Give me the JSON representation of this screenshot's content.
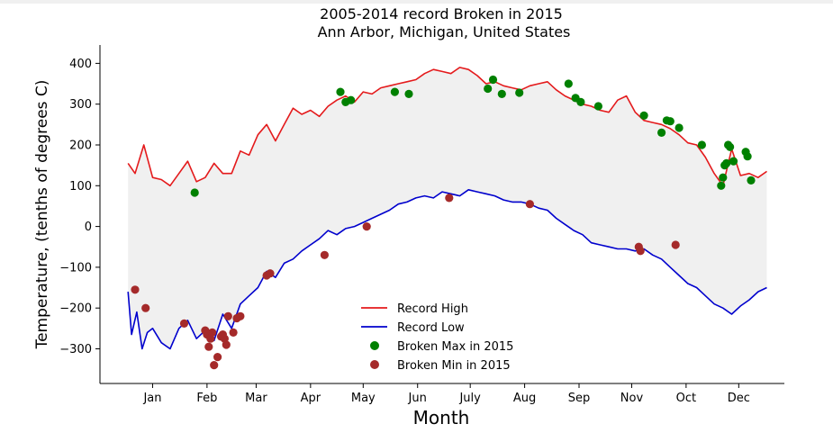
{
  "chart_data": {
    "type": "line",
    "title": "2005-2014 record Broken in 2015",
    "subtitle": "Ann Arbor, Michigan, United States",
    "xlabel": "Month",
    "ylabel": "Temperature, (tenths of degrees C)",
    "xlim": [
      -15,
      375
    ],
    "ylim": [
      -385,
      445
    ],
    "x_ticks": [
      {
        "label": "Jan",
        "day": 15
      },
      {
        "label": "Feb",
        "day": 46
      },
      {
        "label": "Mar",
        "day": 74
      },
      {
        "label": "Apr",
        "day": 105
      },
      {
        "label": "May",
        "day": 135
      },
      {
        "label": "Jun",
        "day": 166
      },
      {
        "label": "July",
        "day": 196
      },
      {
        "label": "Aug",
        "day": 227
      },
      {
        "label": "Sep",
        "day": 258
      },
      {
        "label": "Nov",
        "day": 288
      },
      {
        "label": "Oct",
        "day": 319
      },
      {
        "label": "Dec",
        "day": 349
      }
    ],
    "y_ticks": [
      -300,
      -200,
      -100,
      0,
      100,
      200,
      300,
      400
    ],
    "fill_between": {
      "color": "#f0f0f0"
    },
    "series": [
      {
        "name": "Record High",
        "color": "#e41a1c",
        "x": [
          1,
          5,
          10,
          15,
          20,
          25,
          30,
          35,
          40,
          45,
          50,
          55,
          60,
          65,
          70,
          75,
          80,
          85,
          90,
          95,
          100,
          105,
          110,
          115,
          120,
          125,
          130,
          135,
          140,
          145,
          150,
          155,
          160,
          165,
          170,
          175,
          180,
          185,
          190,
          195,
          200,
          205,
          210,
          215,
          220,
          225,
          230,
          235,
          240,
          245,
          250,
          255,
          260,
          265,
          270,
          275,
          280,
          285,
          290,
          295,
          300,
          305,
          310,
          315,
          320,
          325,
          330,
          335,
          340,
          345,
          350,
          355,
          360,
          365
        ],
        "y": [
          155,
          130,
          200,
          120,
          115,
          100,
          130,
          160,
          110,
          120,
          155,
          130,
          130,
          185,
          175,
          225,
          250,
          210,
          250,
          290,
          275,
          285,
          270,
          295,
          310,
          320,
          305,
          330,
          325,
          340,
          345,
          350,
          355,
          360,
          375,
          385,
          380,
          375,
          390,
          385,
          370,
          350,
          355,
          345,
          340,
          335,
          345,
          350,
          355,
          335,
          320,
          310,
          300,
          295,
          285,
          280,
          310,
          320,
          280,
          260,
          255,
          250,
          240,
          225,
          205,
          200,
          170,
          130,
          100,
          190,
          125,
          130,
          120,
          135
        ]
      },
      {
        "name": "Record Low",
        "color": "#0000cd",
        "x": [
          1,
          3,
          6,
          9,
          12,
          15,
          20,
          25,
          30,
          35,
          40,
          45,
          50,
          55,
          60,
          65,
          70,
          75,
          80,
          85,
          90,
          95,
          100,
          105,
          110,
          115,
          120,
          125,
          130,
          135,
          140,
          145,
          150,
          155,
          160,
          165,
          170,
          175,
          180,
          185,
          190,
          195,
          200,
          205,
          210,
          215,
          220,
          225,
          230,
          235,
          240,
          245,
          250,
          255,
          260,
          265,
          270,
          275,
          280,
          285,
          290,
          295,
          300,
          305,
          310,
          315,
          320,
          325,
          330,
          335,
          340,
          345,
          350,
          355,
          360,
          365
        ],
        "y": [
          -160,
          -265,
          -210,
          -300,
          -260,
          -250,
          -285,
          -300,
          -250,
          -230,
          -275,
          -255,
          -280,
          -215,
          -250,
          -190,
          -170,
          -150,
          -110,
          -125,
          -90,
          -80,
          -60,
          -45,
          -30,
          -10,
          -20,
          -5,
          0,
          10,
          20,
          30,
          40,
          55,
          60,
          70,
          75,
          70,
          85,
          80,
          75,
          90,
          85,
          80,
          75,
          65,
          60,
          60,
          55,
          45,
          40,
          20,
          5,
          -10,
          -20,
          -40,
          -45,
          -50,
          -55,
          -55,
          -60,
          -55,
          -70,
          -80,
          -100,
          -120,
          -140,
          -150,
          -170,
          -190,
          -200,
          -215,
          -195,
          -180,
          -160,
          -150
        ]
      }
    ],
    "scatter_series": [
      {
        "name": "Broken Max in 2015",
        "color": "#008000",
        "x": [
          39,
          122,
          125,
          128,
          153,
          161,
          206,
          209,
          214,
          224,
          252,
          256,
          259,
          269,
          295,
          305,
          308,
          310,
          315,
          328,
          339,
          340,
          341,
          342,
          343,
          344,
          346,
          353,
          354,
          356
        ],
        "y": [
          83,
          330,
          305,
          310,
          330,
          325,
          338,
          360,
          325,
          328,
          350,
          315,
          305,
          295,
          272,
          230,
          260,
          258,
          242,
          200,
          100,
          120,
          150,
          155,
          200,
          195,
          160,
          183,
          172,
          113
        ]
      },
      {
        "name": "Broken Min in 2015",
        "color": "#a52a2a",
        "x": [
          5,
          11,
          33,
          45,
          46,
          47,
          48,
          49,
          50,
          52,
          54,
          55,
          56,
          57,
          58,
          61,
          63,
          65,
          80,
          82,
          113,
          137,
          184,
          230,
          292,
          293,
          313
        ],
        "y": [
          -155,
          -200,
          -238,
          -255,
          -265,
          -295,
          -275,
          -260,
          -340,
          -320,
          -270,
          -265,
          -275,
          -290,
          -220,
          -260,
          -225,
          -220,
          -120,
          -115,
          -70,
          0,
          70,
          55,
          -50,
          -60,
          -45
        ]
      }
    ],
    "legend": {
      "placement": "lower-center",
      "entries": [
        "Record High",
        "Record Low",
        "Broken Max in 2015",
        "Broken Min in 2015"
      ]
    }
  }
}
